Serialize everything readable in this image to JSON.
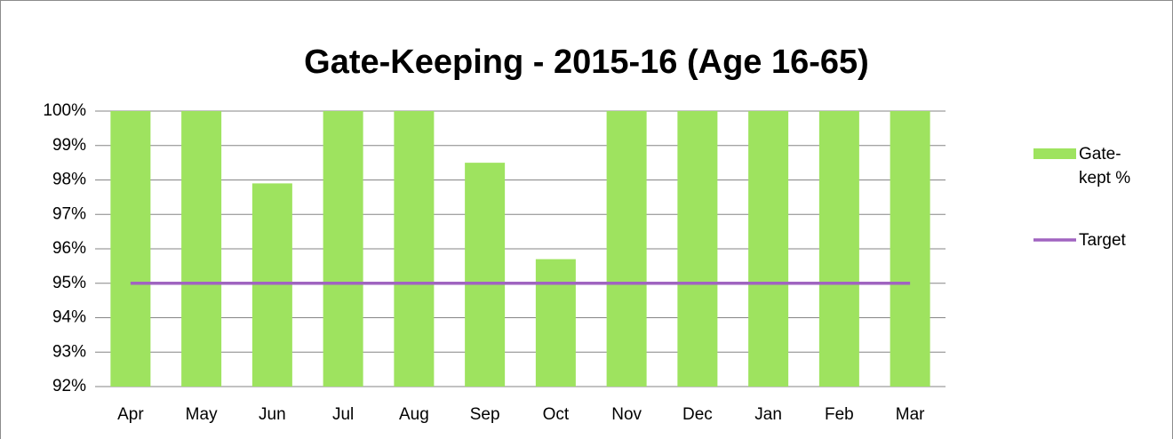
{
  "chart_data": {
    "type": "bar",
    "title": "Gate-Keeping - 2015-16 (Age 16-65)",
    "categories": [
      "Apr",
      "May",
      "Jun",
      "Jul",
      "Aug",
      "Sep",
      "Oct",
      "Nov",
      "Dec",
      "Jan",
      "Feb",
      "Mar"
    ],
    "series": [
      {
        "name": "Gate-kept %",
        "type": "bar",
        "color": "#9ee35f",
        "values": [
          100,
          100,
          97.9,
          100,
          100,
          98.5,
          95.7,
          100,
          100,
          100,
          100,
          100
        ]
      },
      {
        "name": "Target",
        "type": "line",
        "color": "#a064c0",
        "values": [
          95,
          95,
          95,
          95,
          95,
          95,
          95,
          95,
          95,
          95,
          95,
          95
        ]
      }
    ],
    "ylim": [
      92,
      100
    ],
    "yticks": [
      {
        "value": 92,
        "label": "92%"
      },
      {
        "value": 93,
        "label": "93%"
      },
      {
        "value": 94,
        "label": "94%"
      },
      {
        "value": 95,
        "label": "95%"
      },
      {
        "value": 96,
        "label": "96%"
      },
      {
        "value": 97,
        "label": "97%"
      },
      {
        "value": 98,
        "label": "98%"
      },
      {
        "value": 99,
        "label": "99%"
      },
      {
        "value": 100,
        "label": "100%"
      }
    ],
    "grid": true,
    "legend": "right"
  }
}
